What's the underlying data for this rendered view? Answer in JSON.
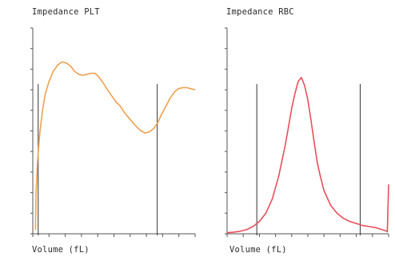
{
  "chart_data": [
    {
      "type": "line",
      "title": "Impedance PLT",
      "xlabel": "Volume (fL)",
      "ylabel": "",
      "grid": false,
      "color": "#f0a050",
      "xlim": [
        0,
        30
      ],
      "ylim": [
        0,
        100
      ],
      "x": [
        0.5,
        0.6,
        0.9,
        1.3,
        1.8,
        2.3,
        3.0,
        3.8,
        4.6,
        5.4,
        6.2,
        7.0,
        7.7,
        8.5,
        9.2,
        10.0,
        10.8,
        11.5,
        12.3,
        13.1,
        13.8,
        14.6,
        15.4,
        16.2,
        16.9,
        17.7,
        18.5,
        19.2,
        20.0,
        20.8,
        21.5,
        22.3,
        23.1,
        23.8,
        24.6,
        25.4,
        26.2,
        26.9,
        27.7,
        28.5,
        29.2,
        30.0
      ],
      "values": [
        2,
        20,
        36,
        49,
        60,
        68,
        74,
        79,
        82,
        83.5,
        83,
        81.5,
        79,
        77.5,
        77,
        77.5,
        78,
        78,
        76,
        73,
        70,
        67,
        64,
        62,
        59,
        56.5,
        54,
        52,
        50,
        49,
        49.5,
        51,
        54,
        58,
        62,
        66,
        69,
        70.5,
        71,
        71,
        70.5,
        70
      ],
      "markers": [
        1,
        23
      ]
    },
    {
      "type": "line",
      "title": "Impedance RBC",
      "xlabel": "Volume (fL)",
      "ylabel": "",
      "grid": false,
      "color": "#e8505a",
      "xlim": [
        0,
        250
      ],
      "ylim": [
        0,
        100
      ],
      "x": [
        0,
        10,
        20,
        30,
        40,
        50,
        60,
        70,
        80,
        90,
        95,
        100,
        105,
        110,
        115,
        120,
        125,
        130,
        135,
        140,
        145,
        150,
        160,
        170,
        180,
        190,
        200,
        210,
        220,
        230,
        240,
        245,
        248,
        250
      ],
      "values": [
        0.5,
        0.8,
        1.2,
        2,
        3.5,
        6,
        10,
        17,
        28,
        43,
        52,
        61,
        68,
        74,
        76,
        72,
        65,
        55,
        44,
        34,
        27,
        21,
        14,
        10,
        7.5,
        6,
        5,
        4,
        3.5,
        3,
        2,
        1.5,
        1,
        24
      ],
      "markers": [
        46,
        206
      ]
    }
  ]
}
